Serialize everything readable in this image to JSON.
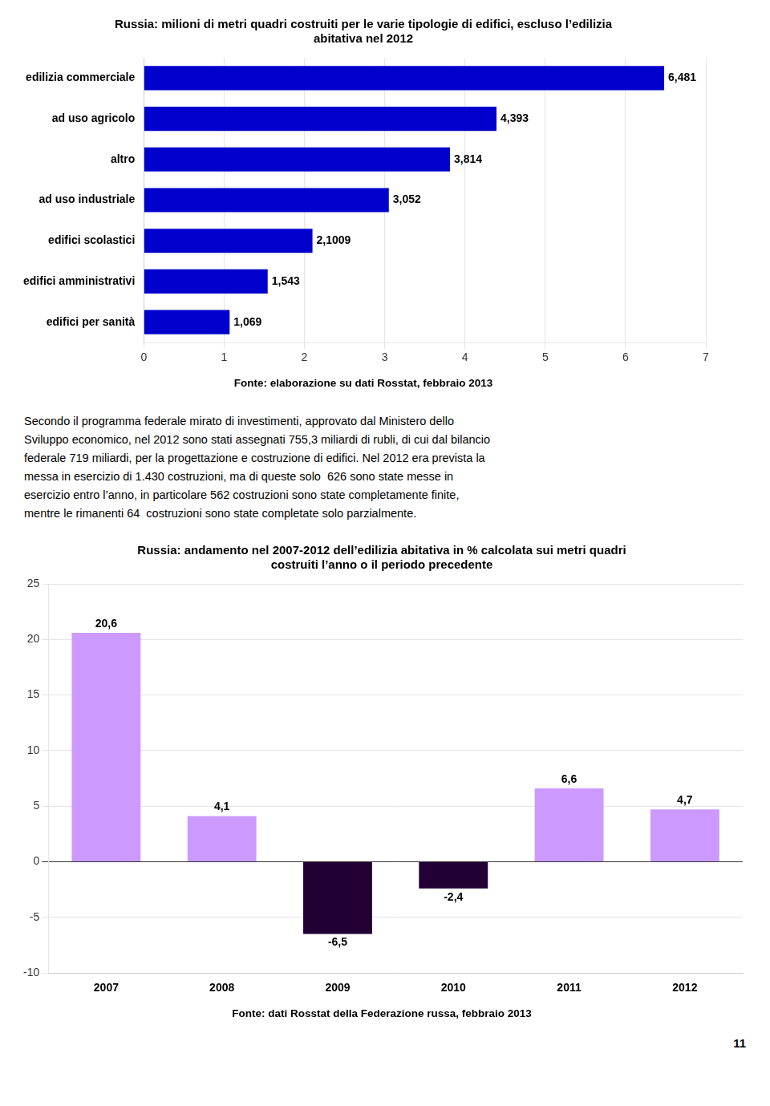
{
  "chart_data": [
    {
      "type": "bar",
      "orientation": "horizontal",
      "title": [
        "Russia: milioni di metri quadri costruiti per le varie tipologie di edifici, escluso l’edilizia",
        "abitativa nel 2012"
      ],
      "subtitle": "Fonte: elaborazione su dati Rosstat, febbraio 2013",
      "annotations": [
        "Secondo il programma federale mirato di investimenti, approvato dal Ministero dello",
        "Sviluppo economico, nel 2012 sono stati assegnati 755,3 miliardi di rubli, di cui dal bilancio",
        "federale 719 miliardi, per la progettazione e costruzione di edifici. Nel 2012 era prevista la",
        "messa in esercizio di 1.430 costruzioni, ma di queste solo  626 sono state messe in",
        "esercizio entro l’anno, in particolare 562 costruzioni sono state completamente finite,",
        "mentre le rimanenti 64  costruzioni sono state completate solo parzialmente."
      ],
      "categories": [
        "edilizia commerciale",
        "ad uso agricolo",
        "altro",
        "ad uso industriale",
        "edifici scolastici",
        "edifici amministrativi",
        "edifici per sanità"
      ],
      "values": [
        6.481,
        4.393,
        3.814,
        3.052,
        2.1009,
        1.543,
        1.069
      ],
      "value_labels": [
        "6,481",
        "4,393",
        "3,814",
        "3,052",
        "2,1009",
        "1,543",
        "1,069"
      ],
      "color": "#0000CC",
      "xlim": [
        0,
        7
      ],
      "xticks": [
        0,
        1,
        2,
        3,
        4,
        5,
        6,
        7
      ],
      "grid": true,
      "data_labels": true
    },
    {
      "type": "bar",
      "title": [
        "Russia: andamento nel 2007-2012 dell’edilizia abitativa in % calcolata sui metri quadri",
        "costruiti l’anno o il periodo precedente"
      ],
      "subtitle": "Fonte: dati Rosstat della Federazione russa, febbraio 2013",
      "annotations": [
        "11"
      ],
      "categories": [
        "2007",
        "2008",
        "2009",
        "2010",
        "2011",
        "2012"
      ],
      "values": [
        20.6,
        4.1,
        -6.5,
        -2.4,
        6.6,
        4.7
      ],
      "value_labels": [
        "20,6",
        "4,1",
        "-6,5",
        "-2,4",
        "6,6",
        "4,7"
      ],
      "colors": [
        "#CC99FF",
        "#CC99FF",
        "#220033",
        "#220033",
        "#CC99FF",
        "#CC99FF"
      ],
      "ylim": [
        -10,
        25
      ],
      "yticks": [
        -10,
        -5,
        0,
        5,
        10,
        15,
        20,
        25
      ],
      "grid": true,
      "data_labels": true
    }
  ]
}
